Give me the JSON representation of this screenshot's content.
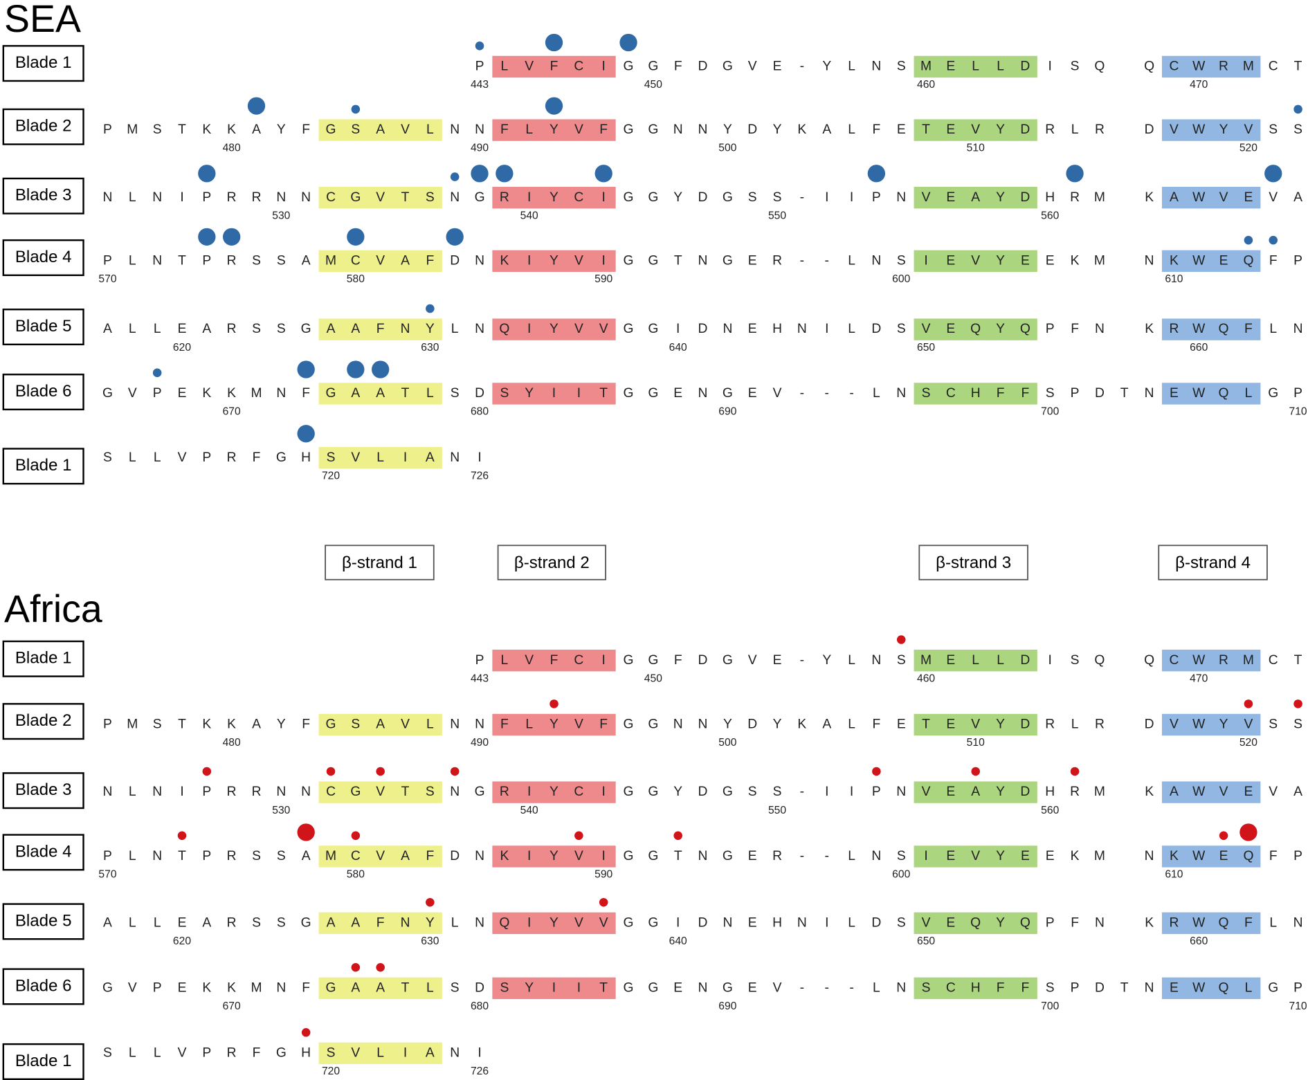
{
  "panels": [
    {
      "title": "SEA",
      "dot_color": "#2f69a6",
      "rows": [
        {
          "label": "Blade 1",
          "sequence": "               PLVFCIGGFDGVE-YLNSMELLDISQ QCWRMCT",
          "numbers": [
            {
              "col": 15,
              "text": 443
            },
            {
              "col": 22,
              "text": 450
            },
            {
              "col": 33,
              "text": 460
            },
            {
              "col": 44,
              "text": 470
            }
          ],
          "dots": [
            {
              "col": 15,
              "size": "small"
            },
            {
              "col": 18,
              "size": "large"
            },
            {
              "col": 21,
              "size": "large"
            }
          ]
        },
        {
          "label": "Blade 2",
          "sequence": "PMSTKKAYFGSAVLNNFLYVFGGNNYDYKALFETEVYDRLR DVWYVSS",
          "numbers": [
            {
              "col": 5,
              "text": 480
            },
            {
              "col": 15,
              "text": 490
            },
            {
              "col": 25,
              "text": 500
            },
            {
              "col": 35,
              "text": 510
            },
            {
              "col": 46,
              "text": 520
            }
          ],
          "dots": [
            {
              "col": 6,
              "size": "large"
            },
            {
              "col": 10,
              "size": "small"
            },
            {
              "col": 18,
              "size": "large"
            },
            {
              "col": 48,
              "size": "small"
            }
          ]
        },
        {
          "label": "Blade 3",
          "sequence": "NLNIPRRNNCGVTSNGRIYCIGGYDGSS-IIPNVEAYDHRM KAWVEVA",
          "numbers": [
            {
              "col": 7,
              "text": 530
            },
            {
              "col": 17,
              "text": 540
            },
            {
              "col": 27,
              "text": 550
            },
            {
              "col": 38,
              "text": 560
            }
          ],
          "dots": [
            {
              "col": 4,
              "size": "large"
            },
            {
              "col": 14,
              "size": "small"
            },
            {
              "col": 15,
              "size": "large"
            },
            {
              "col": 16,
              "size": "large"
            },
            {
              "col": 20,
              "size": "large"
            },
            {
              "col": 31,
              "size": "large"
            },
            {
              "col": 39,
              "size": "large"
            },
            {
              "col": 47,
              "size": "large"
            }
          ]
        },
        {
          "label": "Blade 4",
          "sequence": "PLNTPRSSAMCVAFDNKIYVIGGTNGER--LNSIEVYEEKM NKWEQFP",
          "numbers": [
            {
              "col": 0,
              "text": 570
            },
            {
              "col": 10,
              "text": 580
            },
            {
              "col": 20,
              "text": 590
            },
            {
              "col": 32,
              "text": 600
            },
            {
              "col": 43,
              "text": 610
            }
          ],
          "dots": [
            {
              "col": 4,
              "size": "large"
            },
            {
              "col": 5,
              "size": "large"
            },
            {
              "col": 10,
              "size": "large"
            },
            {
              "col": 14,
              "size": "large"
            },
            {
              "col": 46,
              "size": "small"
            },
            {
              "col": 47,
              "size": "small"
            }
          ]
        },
        {
          "label": "Blade 5",
          "sequence": "ALLEARSSGAAFNYLNQIYVVGGIDNEHNILDSVEQYQPFN KRWQFLN",
          "numbers": [
            {
              "col": 3,
              "text": 620
            },
            {
              "col": 13,
              "text": 630
            },
            {
              "col": 23,
              "text": 640
            },
            {
              "col": 33,
              "text": 650
            },
            {
              "col": 44,
              "text": 660
            }
          ],
          "dots": [
            {
              "col": 13,
              "size": "small"
            }
          ]
        },
        {
          "label": "Blade 6",
          "sequence": "GVPEKKMNFGAATLSDSYIITGGENGEV---LNSCHFFSPDTNEWQLGP",
          "numbers": [
            {
              "col": 5,
              "text": 670
            },
            {
              "col": 15,
              "text": 680
            },
            {
              "col": 25,
              "text": 690
            },
            {
              "col": 38,
              "text": 700
            },
            {
              "col": 48,
              "text": 710
            }
          ],
          "dots": [
            {
              "col": 2,
              "size": "small"
            },
            {
              "col": 8,
              "size": "large"
            },
            {
              "col": 10,
              "size": "large"
            },
            {
              "col": 11,
              "size": "large"
            }
          ]
        },
        {
          "label": "Blade 1",
          "sequence": "SLLVPRFGHSVLIANI",
          "numbers": [
            {
              "col": 9,
              "text": 720
            },
            {
              "col": 15,
              "text": 726
            }
          ],
          "dots": [
            {
              "col": 8,
              "size": "large"
            }
          ]
        }
      ]
    },
    {
      "title": "Africa",
      "dot_color": "#d0141a",
      "rows": [
        {
          "label": "Blade 1",
          "sequence": "               PLVFCIGGFDGVE-YLNSMELLDISQ QCWRMCT",
          "numbers": [
            {
              "col": 15,
              "text": 443
            },
            {
              "col": 22,
              "text": 450
            },
            {
              "col": 33,
              "text": 460
            },
            {
              "col": 44,
              "text": 470
            }
          ],
          "dots": [
            {
              "col": 32,
              "size": "small"
            }
          ]
        },
        {
          "label": "Blade 2",
          "sequence": "PMSTKKAYFGSAVLNNFLYVFGGNNYDYKALFETEVYDRLR DVWYVSS",
          "numbers": [
            {
              "col": 5,
              "text": 480
            },
            {
              "col": 15,
              "text": 490
            },
            {
              "col": 25,
              "text": 500
            },
            {
              "col": 35,
              "text": 510
            },
            {
              "col": 46,
              "text": 520
            }
          ],
          "dots": [
            {
              "col": 18,
              "size": "small"
            },
            {
              "col": 46,
              "size": "small"
            },
            {
              "col": 48,
              "size": "small"
            }
          ]
        },
        {
          "label": "Blade 3",
          "sequence": "NLNIPRRNNCGVTSNGRIYCIGGYDGSS-IIPNVEAYDHRM KAWVEVA",
          "numbers": [
            {
              "col": 7,
              "text": 530
            },
            {
              "col": 17,
              "text": 540
            },
            {
              "col": 27,
              "text": 550
            },
            {
              "col": 38,
              "text": 560
            }
          ],
          "dots": [
            {
              "col": 4,
              "size": "small"
            },
            {
              "col": 9,
              "size": "small"
            },
            {
              "col": 11,
              "size": "small"
            },
            {
              "col": 14,
              "size": "small"
            },
            {
              "col": 31,
              "size": "small"
            },
            {
              "col": 35,
              "size": "small"
            },
            {
              "col": 39,
              "size": "small"
            }
          ]
        },
        {
          "label": "Blade 4",
          "sequence": "PLNTPRSSAMCVAFDNKIYVIGGTNGER--LNSIEVYEEKM NKWEQFP",
          "numbers": [
            {
              "col": 0,
              "text": 570
            },
            {
              "col": 10,
              "text": 580
            },
            {
              "col": 20,
              "text": 590
            },
            {
              "col": 32,
              "text": 600
            },
            {
              "col": 43,
              "text": 610
            }
          ],
          "dots": [
            {
              "col": 3,
              "size": "small"
            },
            {
              "col": 8,
              "size": "large"
            },
            {
              "col": 10,
              "size": "small"
            },
            {
              "col": 19,
              "size": "small"
            },
            {
              "col": 23,
              "size": "small"
            },
            {
              "col": 45,
              "size": "small"
            },
            {
              "col": 46,
              "size": "large"
            }
          ]
        },
        {
          "label": "Blade 5",
          "sequence": "ALLEARSSGAAFNYLNQIYVVGGIDNEHNILDSVEQYQPFN KRWQFLN",
          "numbers": [
            {
              "col": 3,
              "text": 620
            },
            {
              "col": 13,
              "text": 630
            },
            {
              "col": 23,
              "text": 640
            },
            {
              "col": 33,
              "text": 650
            },
            {
              "col": 44,
              "text": 660
            }
          ],
          "dots": [
            {
              "col": 13,
              "size": "small"
            },
            {
              "col": 20,
              "size": "small"
            }
          ]
        },
        {
          "label": "Blade 6",
          "sequence": "GVPEKKMNFGAATLSDSYIITGGENGEV---LNSCHFFSPDTNEWQLGP",
          "numbers": [
            {
              "col": 5,
              "text": 670
            },
            {
              "col": 15,
              "text": 680
            },
            {
              "col": 25,
              "text": 690
            },
            {
              "col": 38,
              "text": 700
            },
            {
              "col": 48,
              "text": 710
            }
          ],
          "dots": [
            {
              "col": 10,
              "size": "small"
            },
            {
              "col": 11,
              "size": "small"
            }
          ]
        },
        {
          "label": "Blade 1",
          "sequence": "SLLVPRFGHSVLIANI",
          "numbers": [
            {
              "col": 9,
              "text": 720
            },
            {
              "col": 15,
              "text": 726
            }
          ],
          "dots": [
            {
              "col": 8,
              "size": "small"
            }
          ]
        }
      ]
    }
  ],
  "strands": [
    {
      "label": "β-strand 1",
      "color": "#eef08c"
    },
    {
      "label": "β-strand 2",
      "color": "#ee8a8c"
    },
    {
      "label": "β-strand 3",
      "color": "#abd57f"
    },
    {
      "label": "β-strand 4",
      "color": "#91b7e2"
    }
  ]
}
